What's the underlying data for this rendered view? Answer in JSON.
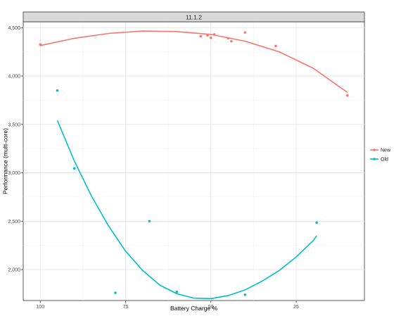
{
  "chart_data": {
    "type": "scatter",
    "facet_label": "11.1.2",
    "xlabel": "Battery Charge %",
    "ylabel": "Performance (multi-core)",
    "x_reversed": true,
    "xlim": [
      105,
      5
    ],
    "ylim": [
      1680,
      4560
    ],
    "x_ticks": [
      100,
      75,
      50,
      25
    ],
    "x_tick_labels": [
      "100",
      "75",
      "50",
      "25"
    ],
    "y_ticks": [
      2000,
      2500,
      3000,
      3500,
      4000,
      4500
    ],
    "y_tick_labels": [
      "2,000",
      "2,500",
      "3,000",
      "3,500",
      "4,000",
      "4,500"
    ],
    "grid": true,
    "legend_position": "right",
    "series": [
      {
        "name": "New",
        "color": "#F8766D",
        "points": [
          [
            100,
            4325
          ],
          [
            53,
            4410
          ],
          [
            51,
            4420
          ],
          [
            50,
            4395
          ],
          [
            49,
            4430
          ],
          [
            45,
            4390
          ],
          [
            44,
            4360
          ],
          [
            40,
            4450
          ],
          [
            31,
            4310
          ],
          [
            10,
            3800
          ]
        ],
        "trend": [
          [
            100,
            4315
          ],
          [
            90,
            4390
          ],
          [
            80,
            4440
          ],
          [
            70,
            4465
          ],
          [
            60,
            4460
          ],
          [
            50,
            4430
          ],
          [
            40,
            4360
          ],
          [
            30,
            4250
          ],
          [
            20,
            4080
          ],
          [
            10,
            3830
          ]
        ]
      },
      {
        "name": "Old",
        "color": "#00BFC4",
        "points": [
          [
            95,
            3850
          ],
          [
            90,
            3045
          ],
          [
            78,
            1760
          ],
          [
            68,
            2500
          ],
          [
            60,
            1770
          ],
          [
            40,
            1740
          ],
          [
            19,
            2485
          ]
        ],
        "trend": [
          [
            95,
            3540
          ],
          [
            90,
            3120
          ],
          [
            85,
            2760
          ],
          [
            80,
            2450
          ],
          [
            75,
            2190
          ],
          [
            70,
            1990
          ],
          [
            65,
            1840
          ],
          [
            60,
            1750
          ],
          [
            55,
            1705
          ],
          [
            50,
            1700
          ],
          [
            45,
            1730
          ],
          [
            40,
            1790
          ],
          [
            35,
            1880
          ],
          [
            30,
            1990
          ],
          [
            25,
            2130
          ],
          [
            20,
            2300
          ],
          [
            19,
            2350
          ]
        ]
      }
    ]
  }
}
